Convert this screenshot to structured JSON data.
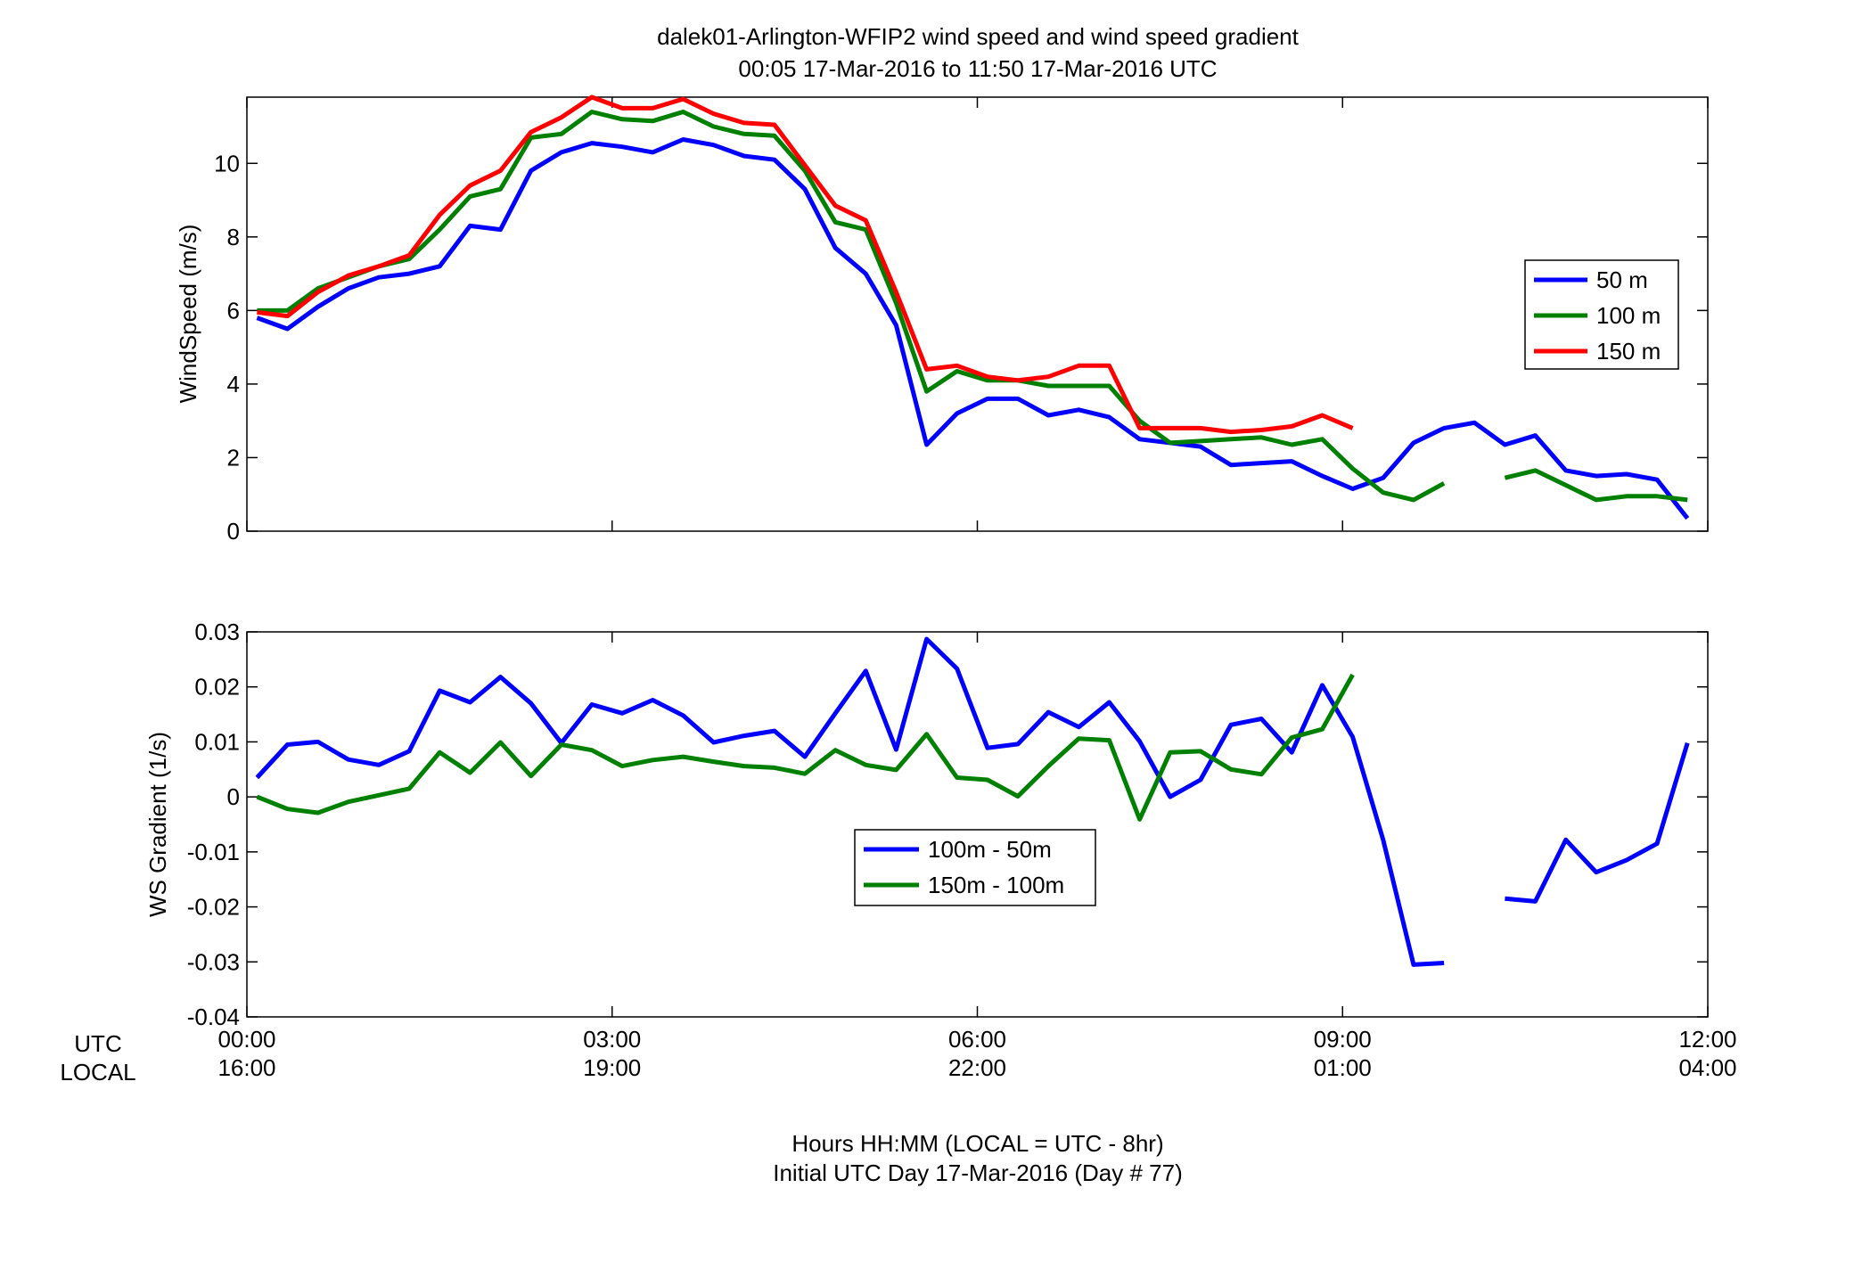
{
  "figure": {
    "title_line1": "dalek01-Arlington-WFIP2  wind speed and wind speed gradient",
    "title_line2": "00:05 17-Mar-2016 to 11:50 17-Mar-2016  UTC",
    "utc_label": "UTC",
    "local_label": "LOCAL",
    "xlabel_line1": "Hours HH:MM  (LOCAL = UTC - 8hr)",
    "xlabel_line2": "Initial UTC Day 17-Mar-2016 (Day # 77)",
    "xticks_utc": [
      "00:00",
      "03:00",
      "06:00",
      "09:00",
      "12:00"
    ],
    "xticks_local": [
      "16:00",
      "19:00",
      "22:00",
      "01:00",
      "04:00"
    ]
  },
  "colors": {
    "blue": "#0000ff",
    "green": "#008000",
    "red": "#ff0000"
  },
  "chart_data": [
    {
      "type": "line",
      "ylabel": "WindSpeed (m/s)",
      "xlim": [
        "00:00",
        "12:00"
      ],
      "ylim": [
        0,
        11.8
      ],
      "yticks": [
        0,
        2,
        4,
        6,
        8,
        10
      ],
      "ytick_labels": [
        "0",
        "2",
        "4",
        "6",
        "8",
        "10"
      ],
      "grid": false,
      "legend_position": "right",
      "x": [
        "00:05",
        "00:20",
        "00:35",
        "00:50",
        "01:05",
        "01:20",
        "01:35",
        "01:50",
        "02:05",
        "02:20",
        "02:35",
        "02:50",
        "03:05",
        "03:20",
        "03:35",
        "03:50",
        "04:05",
        "04:20",
        "04:35",
        "04:50",
        "05:05",
        "05:20",
        "05:35",
        "05:50",
        "06:05",
        "06:20",
        "06:35",
        "06:50",
        "07:05",
        "07:20",
        "07:35",
        "07:50",
        "08:05",
        "08:20",
        "08:35",
        "08:50",
        "09:05",
        "09:20",
        "09:35",
        "09:50",
        "10:05",
        "10:20",
        "10:35",
        "10:50",
        "11:05",
        "11:20",
        "11:35",
        "11:50"
      ],
      "series": [
        {
          "name": "50 m",
          "color": "#0000ff",
          "values": [
            5.8,
            5.5,
            6.1,
            6.6,
            6.9,
            7.0,
            7.2,
            8.3,
            8.2,
            9.8,
            10.3,
            10.55,
            10.45,
            10.3,
            10.65,
            10.5,
            10.2,
            10.1,
            9.3,
            7.7,
            7.0,
            5.6,
            2.35,
            3.2,
            3.6,
            3.6,
            3.15,
            3.3,
            3.1,
            2.5,
            2.4,
            2.3,
            1.8,
            1.85,
            1.9,
            1.5,
            1.15,
            1.45,
            2.4,
            2.8,
            2.95,
            2.35,
            2.6,
            1.65,
            1.5,
            1.55,
            1.4,
            0.35
          ]
        },
        {
          "name": "100 m",
          "color": "#008000",
          "values": [
            6.0,
            6.0,
            6.6,
            6.9,
            7.2,
            7.4,
            8.2,
            9.1,
            9.3,
            10.7,
            10.8,
            11.4,
            11.2,
            11.15,
            11.4,
            11.0,
            10.8,
            10.75,
            9.8,
            8.4,
            8.2,
            6.2,
            3.8,
            4.35,
            4.1,
            4.1,
            3.95,
            3.95,
            3.95,
            3.0,
            2.4,
            2.45,
            2.5,
            2.55,
            2.35,
            2.5,
            1.7,
            1.05,
            0.85,
            1.3,
            null,
            1.45,
            1.65,
            1.25,
            0.85,
            0.95,
            0.95,
            0.85
          ]
        },
        {
          "name": "150 m",
          "color": "#ff0000",
          "values": [
            5.95,
            5.85,
            6.5,
            6.95,
            7.2,
            7.5,
            8.6,
            9.4,
            9.8,
            10.85,
            11.25,
            11.8,
            11.5,
            11.5,
            11.75,
            11.35,
            11.1,
            11.05,
            9.95,
            8.85,
            8.45,
            6.5,
            4.4,
            4.5,
            4.2,
            4.1,
            4.2,
            4.5,
            4.5,
            2.8,
            2.8,
            2.8,
            2.7,
            2.75,
            2.85,
            3.15,
            2.8,
            null,
            null,
            null,
            null,
            null,
            null,
            null,
            null,
            null,
            null,
            null
          ]
        }
      ]
    },
    {
      "type": "line",
      "ylabel": "WS Gradient (1/s)",
      "xlim": [
        "00:00",
        "12:00"
      ],
      "ylim": [
        -0.04,
        0.03
      ],
      "yticks": [
        -0.04,
        -0.03,
        -0.02,
        -0.01,
        0,
        0.01,
        0.02,
        0.03
      ],
      "ytick_labels": [
        "-0.04",
        "-0.03",
        "-0.02",
        "-0.01",
        "0",
        "0.01",
        "0.02",
        "0.03"
      ],
      "grid": false,
      "legend_position": "lower-center",
      "x": [
        "00:05",
        "00:20",
        "00:35",
        "00:50",
        "01:05",
        "01:20",
        "01:35",
        "01:50",
        "02:05",
        "02:20",
        "02:35",
        "02:50",
        "03:05",
        "03:20",
        "03:35",
        "03:50",
        "04:05",
        "04:20",
        "04:35",
        "04:50",
        "05:05",
        "05:20",
        "05:35",
        "05:50",
        "06:05",
        "06:20",
        "06:35",
        "06:50",
        "07:05",
        "07:20",
        "07:35",
        "07:50",
        "08:05",
        "08:20",
        "08:35",
        "08:50",
        "09:05",
        "09:20",
        "09:35",
        "09:50",
        "10:05",
        "10:20",
        "10:35",
        "10:50",
        "11:05",
        "11:20",
        "11:35",
        "11:50"
      ],
      "series": [
        {
          "name": "100m - 50m",
          "color": "#0000ff",
          "values": [
            0.0035,
            0.0095,
            0.01,
            0.0068,
            0.0058,
            0.0083,
            0.0193,
            0.0172,
            0.0218,
            0.017,
            0.0098,
            0.0168,
            0.0152,
            0.0176,
            0.0148,
            0.0099,
            0.0111,
            0.012,
            0.0073,
            0.0152,
            0.0229,
            0.0086,
            0.0287,
            0.0233,
            0.0089,
            0.0096,
            0.0154,
            0.0127,
            0.0172,
            0.0101,
            0.0,
            0.0031,
            0.0131,
            0.0142,
            0.0081,
            0.0203,
            0.0109,
            -0.0078,
            -0.0305,
            -0.0302,
            null,
            -0.0185,
            -0.019,
            -0.0078,
            -0.0137,
            -0.0115,
            -0.0085,
            0.0098
          ]
        },
        {
          "name": "150m - 100m",
          "color": "#008000",
          "values": [
            0.0,
            -0.0022,
            -0.0029,
            -0.0009,
            0.0003,
            0.0015,
            0.0081,
            0.0044,
            0.0099,
            0.0038,
            0.0095,
            0.0085,
            0.0056,
            0.0067,
            0.0073,
            0.0064,
            0.0056,
            0.0053,
            0.0042,
            0.0085,
            0.0058,
            0.0049,
            0.0114,
            0.0035,
            0.0031,
            0.0001,
            0.0056,
            0.0106,
            0.0103,
            -0.0041,
            0.0081,
            0.0083,
            0.005,
            0.0041,
            0.0108,
            0.0123,
            0.0222,
            null,
            null,
            null,
            null,
            null,
            null,
            null,
            null,
            null,
            null,
            null
          ]
        }
      ]
    }
  ]
}
